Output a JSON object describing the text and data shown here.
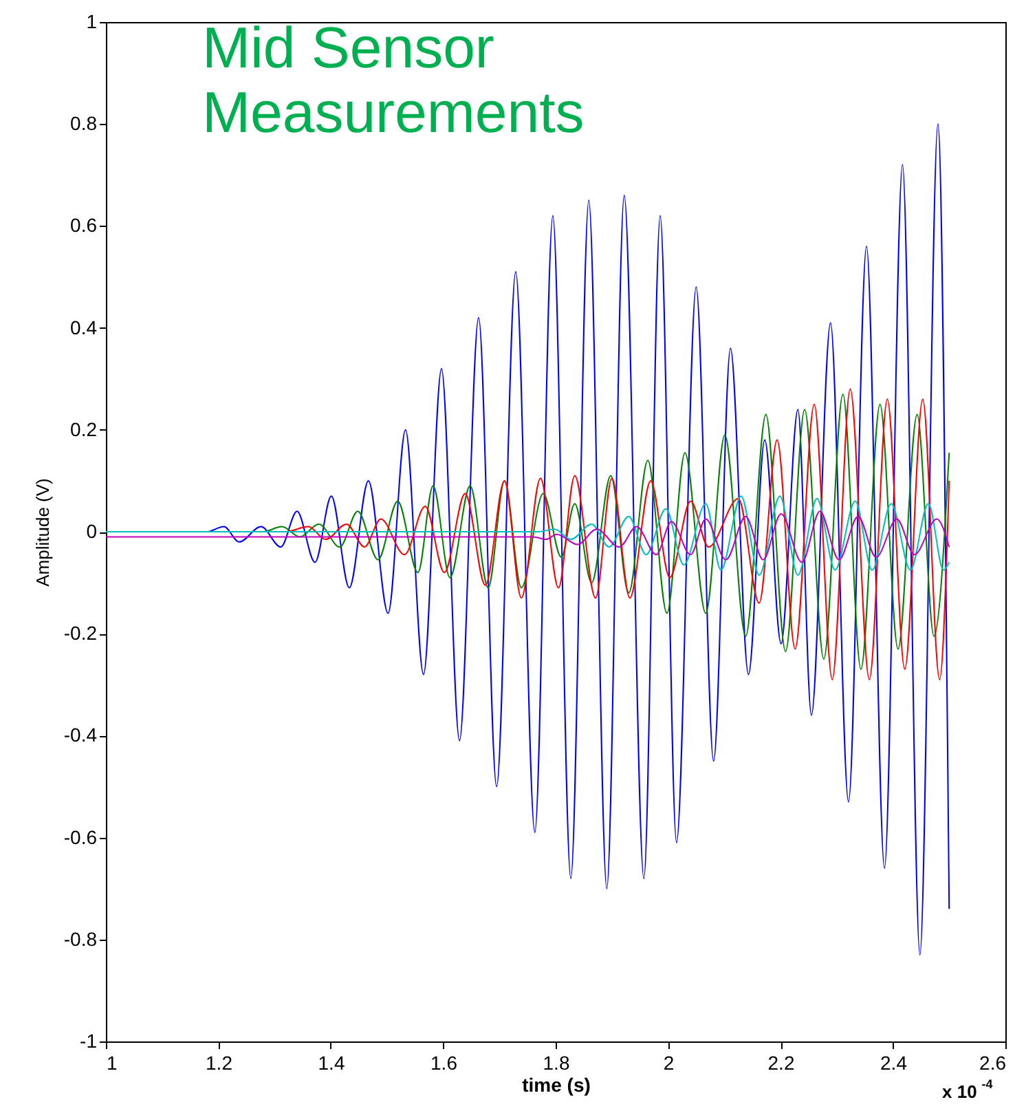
{
  "chart_data": {
    "type": "line",
    "title": "Mid Sensor Measurements",
    "xlabel": "time (s)",
    "ylabel": "Amplitude (V)",
    "annotations": [
      "x 10$^{-4}$"
    ],
    "xlim": [
      1,
      2.6
    ],
    "xticks": [
      1,
      1.2,
      1.4,
      1.6,
      1.8,
      2,
      2.2,
      2.4,
      2.6
    ],
    "ylim": [
      -1,
      1
    ],
    "yticks": [
      -1,
      -0.8,
      -0.6,
      -0.4,
      -0.2,
      0,
      0.2,
      0.4,
      0.6,
      0.8,
      1
    ],
    "series": [
      {
        "color": "#0000ff",
        "x": [
          1,
          1.179,
          1.21,
          1.237,
          1.276,
          1.311,
          1.34,
          1.372,
          1.401,
          1.433,
          1.467,
          1.502,
          1.533,
          1.565,
          1.597,
          1.629,
          1.663,
          1.695,
          1.729,
          1.763,
          1.795,
          1.827,
          1.859,
          1.891,
          1.922,
          1.957,
          1.986,
          2.015,
          2.05,
          2.081,
          2.111,
          2.143,
          2.172,
          2.201,
          2.231,
          2.255,
          2.289,
          2.321,
          2.353,
          2.385,
          2.417,
          2.448,
          2.48,
          2.5
        ],
        "values": [
          0,
          0,
          0.01,
          -0.02,
          0.01,
          -0.03,
          0.04,
          -0.06,
          0.07,
          -0.11,
          0.1,
          -0.16,
          0.2,
          -0.28,
          0.32,
          -0.41,
          0.42,
          -0.5,
          0.51,
          -0.59,
          0.62,
          -0.68,
          0.65,
          -0.7,
          0.66,
          -0.68,
          0.62,
          -0.61,
          0.48,
          -0.45,
          0.36,
          -0.28,
          0.18,
          -0.22,
          0.24,
          -0.36,
          0.41,
          -0.53,
          0.56,
          -0.66,
          0.72,
          -0.83,
          0.8,
          -0.74
        ]
      },
      {
        "color": "#008000",
        "x": [
          1,
          1.28,
          1.313,
          1.345,
          1.379,
          1.416,
          1.448,
          1.484,
          1.519,
          1.555,
          1.582,
          1.612,
          1.648,
          1.68,
          1.709,
          1.739,
          1.778,
          1.81,
          1.834,
          1.864,
          1.898,
          1.93,
          1.964,
          1.998,
          2.03,
          2.067,
          2.101,
          2.138,
          2.174,
          2.209,
          2.243,
          2.277,
          2.311,
          2.343,
          2.377,
          2.409,
          2.443,
          2.473,
          2.5
        ],
        "values": [
          0,
          0,
          0.01,
          -0.01,
          0.015,
          -0.03,
          0.04,
          -0.055,
          0.06,
          -0.08,
          0.09,
          -0.09,
          0.09,
          -0.11,
          0.1,
          -0.11,
          0.075,
          -0.05,
          0.055,
          -0.1,
          0.11,
          -0.12,
          0.14,
          -0.16,
          0.155,
          -0.16,
          0.19,
          -0.205,
          0.23,
          -0.235,
          0.24,
          -0.25,
          0.27,
          -0.27,
          0.25,
          -0.23,
          0.23,
          -0.205,
          0.155
        ]
      },
      {
        "color": "#ff0000",
        "x": [
          1,
          1.32,
          1.36,
          1.391,
          1.428,
          1.46,
          1.489,
          1.531,
          1.568,
          1.602,
          1.639,
          1.675,
          1.709,
          1.739,
          1.773,
          1.805,
          1.834,
          1.871,
          1.9,
          1.932,
          1.969,
          2.003,
          2.04,
          2.072,
          2.125,
          2.162,
          2.194,
          2.226,
          2.26,
          2.292,
          2.324,
          2.358,
          2.39,
          2.421,
          2.453,
          2.483,
          2.5
        ],
        "values": [
          0,
          0,
          0.01,
          -0.015,
          0.015,
          -0.03,
          0.025,
          -0.045,
          0.05,
          -0.08,
          0.075,
          -0.105,
          0.1,
          -0.13,
          0.105,
          -0.11,
          0.11,
          -0.13,
          0.105,
          -0.13,
          0.1,
          -0.09,
          0.06,
          -0.03,
          0.065,
          -0.14,
          0.18,
          -0.23,
          0.25,
          -0.29,
          0.28,
          -0.29,
          0.26,
          -0.27,
          0.26,
          -0.29,
          0.1
        ]
      },
      {
        "color": "#00bfbf",
        "x": [
          1,
          1.77,
          1.798,
          1.827,
          1.864,
          1.895,
          1.93,
          1.961,
          1.996,
          2.028,
          2.067,
          2.094,
          2.13,
          2.162,
          2.199,
          2.231,
          2.265,
          2.297,
          2.333,
          2.363,
          2.397,
          2.431,
          2.463,
          2.49,
          2.5
        ],
        "values": [
          0,
          0,
          0.005,
          -0.015,
          0.015,
          -0.03,
          0.03,
          -0.045,
          0.045,
          -0.065,
          0.055,
          -0.075,
          0.07,
          -0.085,
          0.07,
          -0.085,
          0.065,
          -0.075,
          0.06,
          -0.075,
          0.055,
          -0.075,
          0.055,
          -0.075,
          -0.06
        ]
      },
      {
        "color": "#bf00bf",
        "x": [
          1,
          1.76,
          1.783,
          1.802,
          1.839,
          1.873,
          1.913,
          1.944,
          1.979,
          2.006,
          2.04,
          2.067,
          2.103,
          2.138,
          2.169,
          2.201,
          2.238,
          2.27,
          2.304,
          2.338,
          2.37,
          2.407,
          2.438,
          2.478,
          2.5
        ],
        "values": [
          -0.01,
          -0.01,
          -0.015,
          -0.005,
          -0.025,
          0.005,
          -0.03,
          0.01,
          -0.045,
          0.02,
          -0.045,
          0.025,
          -0.055,
          0.03,
          -0.055,
          0.035,
          -0.06,
          0.04,
          -0.055,
          0.03,
          -0.05,
          0.025,
          -0.045,
          0.025,
          -0.03
        ]
      }
    ]
  }
}
